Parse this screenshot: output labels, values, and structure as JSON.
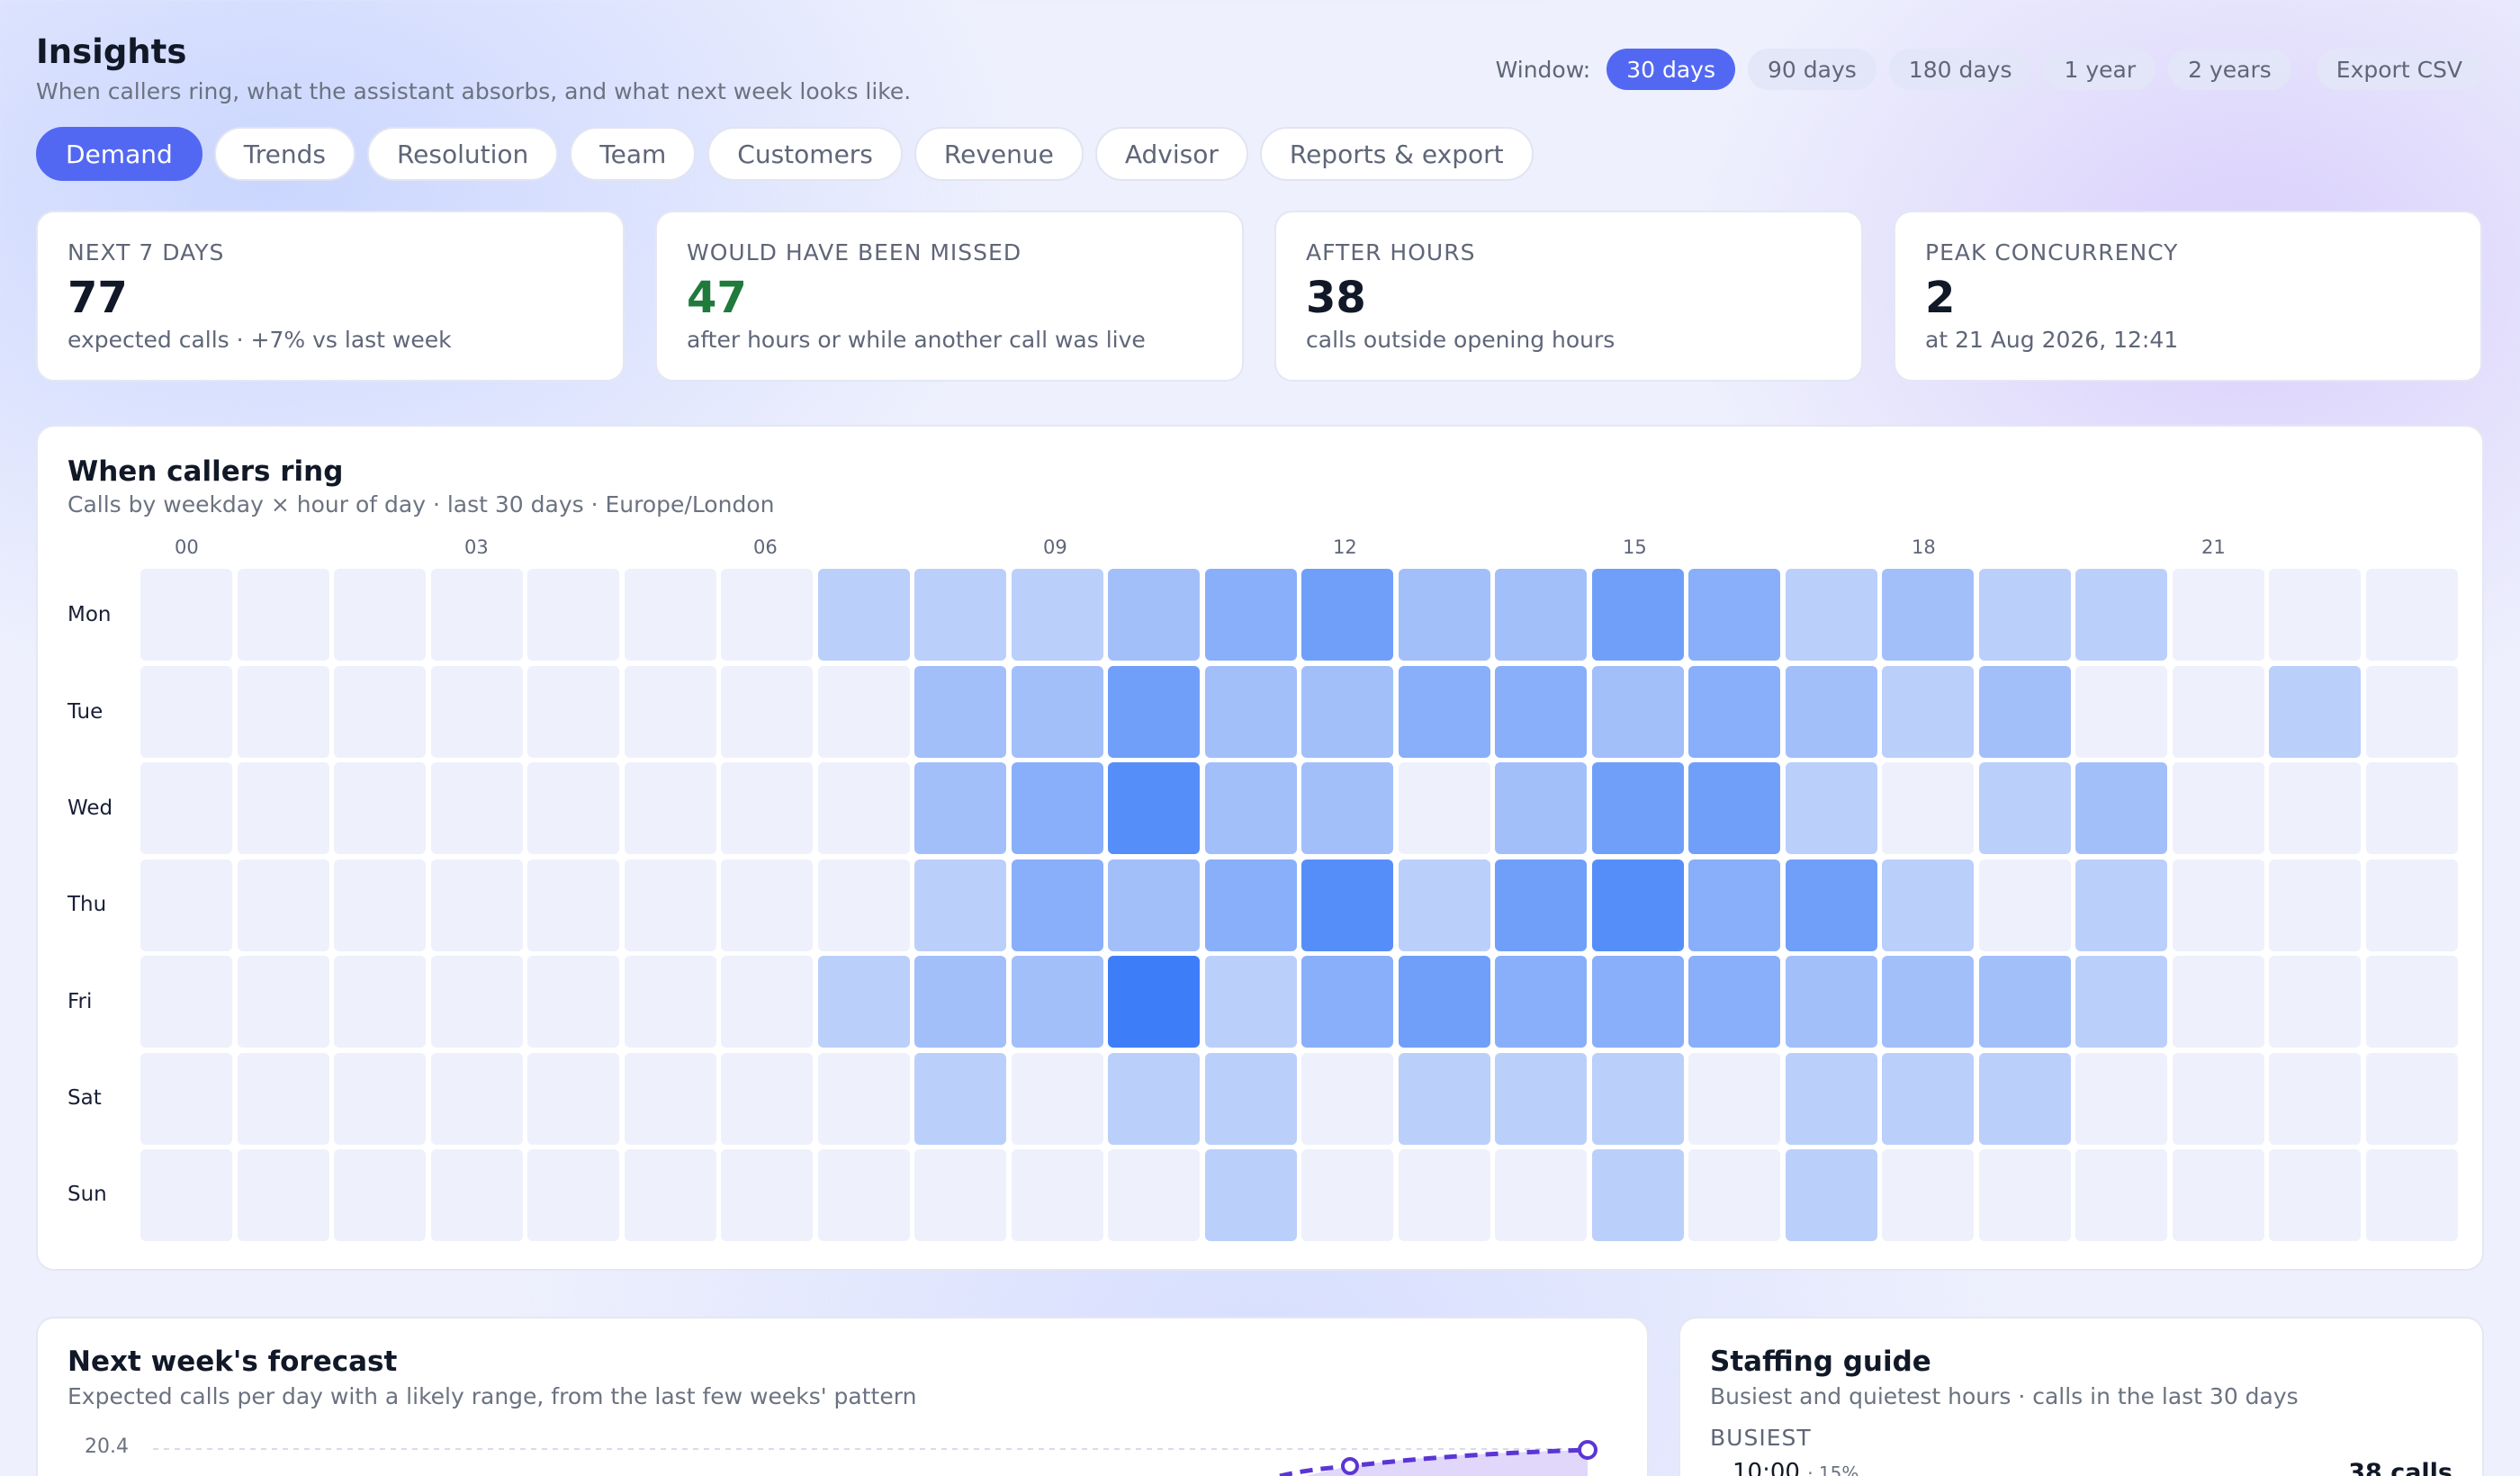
{
  "header": {
    "title": "Insights",
    "subtitle": "When callers ring, what the assistant absorbs, and what next week looks like."
  },
  "window": {
    "label": "Window:",
    "options": [
      "30 days",
      "90 days",
      "180 days",
      "1 year",
      "2 years"
    ],
    "selected": "30 days",
    "export_label": "Export CSV"
  },
  "tabs": [
    "Demand",
    "Trends",
    "Resolution",
    "Team",
    "Customers",
    "Revenue",
    "Advisor",
    "Reports & export"
  ],
  "active_tab": "Demand",
  "stats": [
    {
      "label": "NEXT 7 DAYS",
      "value": "77",
      "sub": "expected calls · +7% vs last week"
    },
    {
      "label": "WOULD HAVE BEEN MISSED",
      "value": "47",
      "sub": "after hours or while another call was live",
      "color": "#1f7a3c"
    },
    {
      "label": "AFTER HOURS",
      "value": "38",
      "sub": "calls outside opening hours"
    },
    {
      "label": "PEAK CONCURRENCY",
      "value": "2",
      "sub": "at 21 Aug 2026, 12:41"
    }
  ],
  "heatmap": {
    "title": "When callers ring",
    "subtitle": "Calls by weekday × hour of day · last 30 days · Europe/London",
    "hour_labels": [
      "00",
      "03",
      "06",
      "09",
      "12",
      "15",
      "18",
      "21"
    ],
    "days": [
      "Mon",
      "Tue",
      "Wed",
      "Thu",
      "Fri",
      "Sat",
      "Sun"
    ],
    "colors": {
      "empty": "#eef0fc",
      "full": "#3d7ef8"
    },
    "max_level": 7,
    "levels": [
      [
        0,
        0,
        0,
        0,
        0,
        0,
        0,
        2,
        2,
        2,
        3,
        4,
        5,
        3,
        3,
        5,
        4,
        2,
        3,
        2,
        2,
        0,
        0,
        0
      ],
      [
        0,
        0,
        0,
        0,
        0,
        0,
        0,
        0,
        3,
        3,
        5,
        3,
        3,
        4,
        4,
        3,
        4,
        3,
        2,
        3,
        0,
        0,
        2,
        0
      ],
      [
        0,
        0,
        0,
        0,
        0,
        0,
        0,
        0,
        3,
        4,
        6,
        3,
        3,
        0,
        3,
        5,
        5,
        2,
        0,
        2,
        3,
        0,
        0,
        0
      ],
      [
        0,
        0,
        0,
        0,
        0,
        0,
        0,
        0,
        2,
        4,
        3,
        4,
        6,
        2,
        5,
        6,
        4,
        5,
        2,
        0,
        2,
        0,
        0,
        0
      ],
      [
        0,
        0,
        0,
        0,
        0,
        0,
        0,
        2,
        3,
        3,
        7,
        2,
        4,
        5,
        4,
        4,
        4,
        3,
        3,
        3,
        2,
        0,
        0,
        0
      ],
      [
        0,
        0,
        0,
        0,
        0,
        0,
        0,
        0,
        2,
        0,
        2,
        2,
        0,
        2,
        2,
        2,
        0,
        2,
        2,
        2,
        0,
        0,
        0,
        0
      ],
      [
        0,
        0,
        0,
        0,
        0,
        0,
        0,
        0,
        0,
        0,
        0,
        2,
        0,
        0,
        0,
        2,
        0,
        2,
        0,
        0,
        0,
        0,
        0,
        0
      ]
    ]
  },
  "forecast": {
    "title": "Next week's forecast",
    "subtitle": "Expected calls per day with a likely range, from the last few weeks' pattern",
    "y_tick": "20.4",
    "line_color": "#5b35d5"
  },
  "staffing": {
    "title": "Staffing guide",
    "subtitle": "Busiest and quietest hours · calls in the last 30 days",
    "busiest_label": "BUSIEST",
    "busiest": [
      {
        "hour": "10:00",
        "pct": "· 15%",
        "calls": "38 calls"
      }
    ]
  }
}
